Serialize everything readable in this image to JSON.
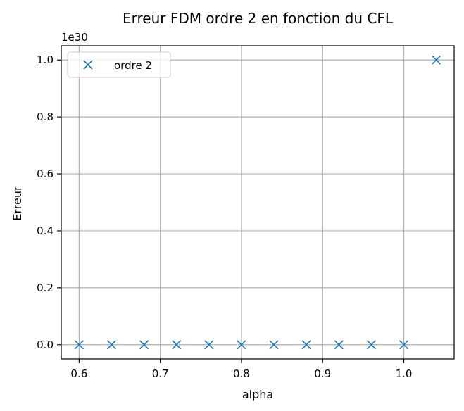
{
  "chart_data": {
    "type": "scatter",
    "title": "Erreur FDM ordre 2 en fonction du CFL",
    "xlabel": "alpha",
    "ylabel": "Erreur",
    "y_offset_text": "1e30",
    "y_multiplier": 1e+30,
    "xlim": [
      0.578,
      1.062
    ],
    "ylim": [
      -0.05,
      1.05
    ],
    "xticks": [
      0.6,
      0.7,
      0.8,
      0.9,
      1.0
    ],
    "xtick_labels": [
      "0.6",
      "0.7",
      "0.8",
      "0.9",
      "1.0"
    ],
    "yticks": [
      0.0,
      0.2,
      0.4,
      0.6,
      0.8,
      1.0
    ],
    "ytick_labels": [
      "0.0",
      "0.2",
      "0.4",
      "0.6",
      "0.8",
      "1.0"
    ],
    "grid": true,
    "legend_position": "top-left",
    "series": [
      {
        "name": "ordre 2",
        "marker": "x",
        "color": "#1f77b4",
        "x": [
          0.6,
          0.64,
          0.68,
          0.72,
          0.76,
          0.8,
          0.84,
          0.88,
          0.92,
          0.96,
          1.0,
          1.04
        ],
        "y": [
          0,
          0,
          0,
          0,
          0,
          0,
          0,
          0,
          0,
          0,
          0,
          1.0
        ]
      }
    ]
  }
}
